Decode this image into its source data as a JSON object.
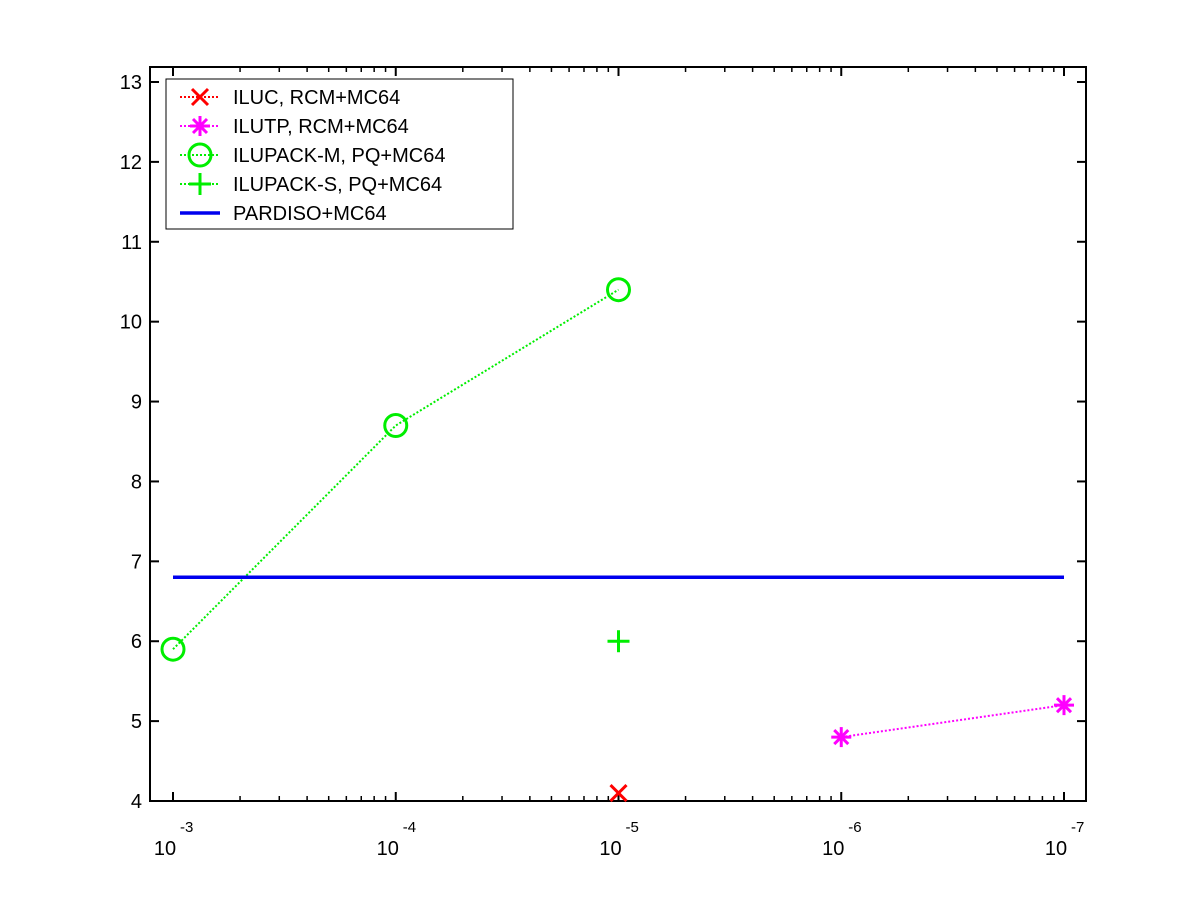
{
  "chart_data": {
    "type": "line",
    "x_scale": "log",
    "x_reversed": true,
    "x_ticks": [
      {
        "value": 0.001,
        "base": "10",
        "exponent": "-3"
      },
      {
        "value": 0.0001,
        "base": "10",
        "exponent": "-4"
      },
      {
        "value": 1e-05,
        "base": "10",
        "exponent": "-5"
      },
      {
        "value": 1e-06,
        "base": "10",
        "exponent": "-6"
      },
      {
        "value": 1e-07,
        "base": "10",
        "exponent": "-7"
      }
    ],
    "xlim": [
      0.001,
      1e-07
    ],
    "ylim": [
      4,
      13
    ],
    "y_ticks": [
      "4",
      "5",
      "6",
      "7",
      "8",
      "9",
      "10",
      "11",
      "12",
      "13"
    ],
    "grid": false,
    "legend_position": "top-left",
    "series": [
      {
        "name": "ILUC, RCM+MC64",
        "color": "#ff0000",
        "marker": "x",
        "line": "dotted",
        "x": [
          1e-05
        ],
        "y": [
          4.1
        ]
      },
      {
        "name": "ILUTP, RCM+MC64",
        "color": "#ff00ff",
        "marker": "asterisk",
        "line": "dotted",
        "x": [
          1e-06,
          1e-07
        ],
        "y": [
          4.8,
          5.2
        ]
      },
      {
        "name": "ILUPACK-M, PQ+MC64",
        "color": "#00ee00",
        "marker": "circle",
        "line": "dotted",
        "x": [
          0.001,
          0.0001,
          1e-05
        ],
        "y": [
          5.9,
          8.7,
          10.4
        ]
      },
      {
        "name": "ILUPACK-S, PQ+MC64",
        "color": "#00ee00",
        "marker": "plus",
        "line": "dotted",
        "x": [
          1e-05
        ],
        "y": [
          6.0
        ]
      },
      {
        "name": "PARDISO+MC64",
        "color": "#0000ee",
        "marker": "none",
        "line": "solid",
        "x": [
          0.001,
          1e-07
        ],
        "y": [
          6.8,
          6.8
        ]
      }
    ]
  }
}
